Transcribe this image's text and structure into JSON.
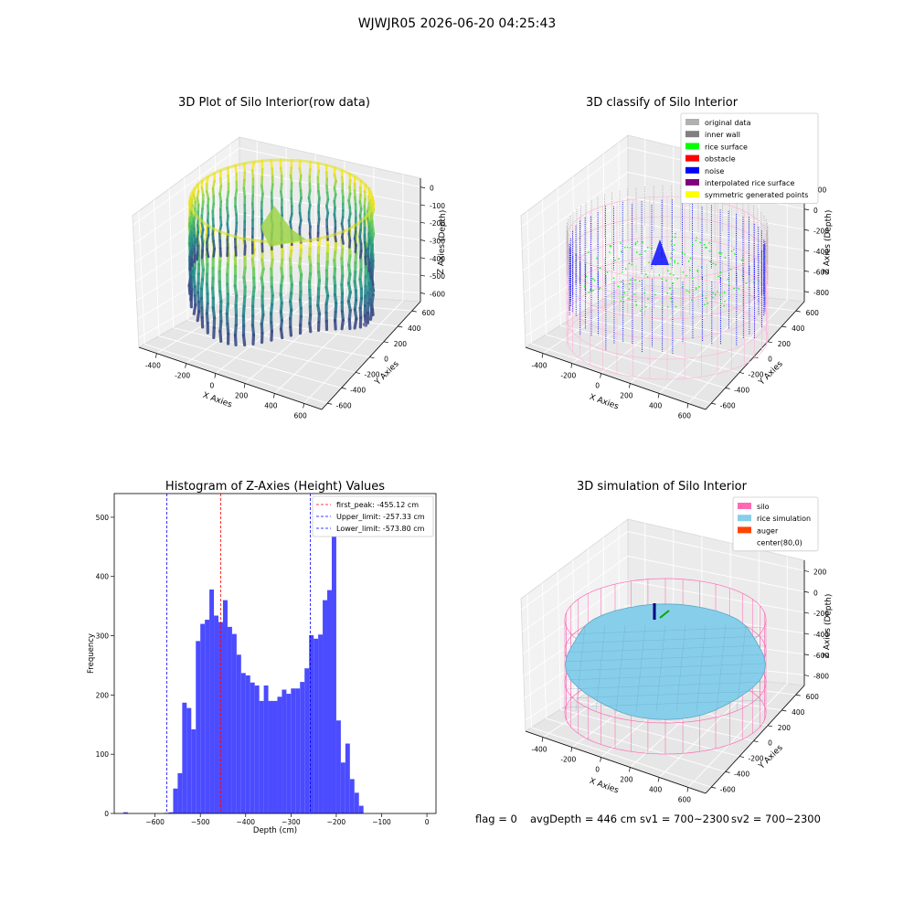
{
  "figure": {
    "suptitle": "WJWJR05 2026-06-20 04:25:43",
    "colors": {
      "navy": "#3b528b",
      "teal": "#21918c",
      "green": "#5ec962",
      "yellow": "#c8e020",
      "blue": "#0000ff",
      "pink": "#ff69b4",
      "sky": "#87ceeb",
      "orange": "#ff4500",
      "gray": "#aaaaaa",
      "darkgray": "#808080",
      "hist": "#4b4bff"
    }
  },
  "footer": {
    "flag": "flag = 0",
    "avg": "avgDepth = 446 cm",
    "sv1": "sv1 = 700~2300",
    "sv2": "sv2 = 700~2300"
  },
  "chart_data": [
    {
      "type": "scatter",
      "subtype": "3d",
      "title": "3D Plot of Silo Interior(row data)",
      "xlabel": "X Axies",
      "ylabel": "Y Axies",
      "zlabel": "Z Axies (Depth)",
      "xticks": [
        "-400",
        "-200",
        "0",
        "200",
        "400",
        "600"
      ],
      "yticks": [
        "-600",
        "-400",
        "-200",
        "0",
        "200",
        "400",
        "600"
      ],
      "zticks": [
        "0",
        "-100",
        "-200",
        "-300",
        "-400",
        "-500",
        "-600"
      ],
      "colormap": "viridis"
    },
    {
      "type": "scatter",
      "subtype": "3d",
      "title": "3D classify of Silo Interior",
      "xlabel": "X Axies",
      "ylabel": "Y Axies",
      "zlabel": "Z Axies (Depth)",
      "xticks": [
        "-400",
        "-200",
        "0",
        "200",
        "400",
        "600"
      ],
      "yticks": [
        "-600",
        "-400",
        "-200",
        "0",
        "200",
        "400",
        "600"
      ],
      "zticks": [
        "200",
        "0",
        "-200",
        "-400",
        "-600",
        "-800"
      ],
      "legend_position": "upper-right",
      "legend": [
        {
          "label": "original data",
          "color": "#b0b0b0"
        },
        {
          "label": "inner wall",
          "color": "#808080"
        },
        {
          "label": "rice surface",
          "color": "#00ff00"
        },
        {
          "label": "obstacle",
          "color": "#ff0000"
        },
        {
          "label": "noise",
          "color": "#0000ff"
        },
        {
          "label": "interpolated rice surface",
          "color": "#800080"
        },
        {
          "label": "symmetric generated points",
          "color": "#ffff00"
        }
      ]
    },
    {
      "type": "bar",
      "subtype": "histogram",
      "title": "Histogram of Z-Axies (Height) Values",
      "xlabel": "Depth (cm)",
      "ylabel": "Frequency",
      "xlim": [
        -690,
        20
      ],
      "ylim": [
        0,
        540
      ],
      "xticks": [
        -600,
        -500,
        -400,
        -300,
        -200,
        -100,
        0
      ],
      "yticks": [
        0,
        100,
        200,
        300,
        400,
        500
      ],
      "bin_width": 10,
      "bins": [
        {
          "x0": -670,
          "count": 2
        },
        {
          "x0": -580,
          "count": 1
        },
        {
          "x0": -570,
          "count": 2
        },
        {
          "x0": -560,
          "count": 42
        },
        {
          "x0": -550,
          "count": 68
        },
        {
          "x0": -540,
          "count": 187
        },
        {
          "x0": -530,
          "count": 178
        },
        {
          "x0": -520,
          "count": 142
        },
        {
          "x0": -510,
          "count": 291
        },
        {
          "x0": -500,
          "count": 320
        },
        {
          "x0": -490,
          "count": 327
        },
        {
          "x0": -480,
          "count": 378
        },
        {
          "x0": -470,
          "count": 334
        },
        {
          "x0": -460,
          "count": 323
        },
        {
          "x0": -450,
          "count": 360
        },
        {
          "x0": -440,
          "count": 315
        },
        {
          "x0": -430,
          "count": 303
        },
        {
          "x0": -420,
          "count": 268
        },
        {
          "x0": -410,
          "count": 237
        },
        {
          "x0": -400,
          "count": 233
        },
        {
          "x0": -390,
          "count": 221
        },
        {
          "x0": -380,
          "count": 216
        },
        {
          "x0": -370,
          "count": 190
        },
        {
          "x0": -360,
          "count": 216
        },
        {
          "x0": -350,
          "count": 190
        },
        {
          "x0": -340,
          "count": 190
        },
        {
          "x0": -330,
          "count": 197
        },
        {
          "x0": -320,
          "count": 209
        },
        {
          "x0": -310,
          "count": 202
        },
        {
          "x0": -300,
          "count": 211
        },
        {
          "x0": -290,
          "count": 211
        },
        {
          "x0": -280,
          "count": 222
        },
        {
          "x0": -270,
          "count": 245
        },
        {
          "x0": -260,
          "count": 301
        },
        {
          "x0": -250,
          "count": 295
        },
        {
          "x0": -240,
          "count": 302
        },
        {
          "x0": -230,
          "count": 360
        },
        {
          "x0": -220,
          "count": 377
        },
        {
          "x0": -210,
          "count": 528
        },
        {
          "x0": -200,
          "count": 157
        },
        {
          "x0": -190,
          "count": 86
        },
        {
          "x0": -180,
          "count": 118
        },
        {
          "x0": -170,
          "count": 58
        },
        {
          "x0": -160,
          "count": 35
        },
        {
          "x0": -150,
          "count": 13
        }
      ],
      "lines": [
        {
          "label": "first_peak: -455.12 cm",
          "x": -455.12,
          "color": "#ff0000"
        },
        {
          "label": "Upper_limit: -257.33 cm",
          "x": -257.33,
          "color": "#0000ff"
        },
        {
          "label": "Lower_limit: -573.80 cm",
          "x": -573.8,
          "color": "#0000ff"
        }
      ]
    },
    {
      "type": "other",
      "subtype": "3d-surface",
      "title": "3D simulation of Silo Interior",
      "xlabel": "X Axies",
      "ylabel": "Y Axies",
      "zlabel": "Z Axies (Depth)",
      "xticks": [
        "-400",
        "-200",
        "0",
        "200",
        "400",
        "600"
      ],
      "yticks": [
        "-600",
        "-400",
        "-200",
        "0",
        "200",
        "400",
        "600"
      ],
      "zticks": [
        "200",
        "0",
        "-200",
        "-400",
        "-600",
        "-800"
      ],
      "legend_position": "upper-right",
      "legend": [
        {
          "label": "silo",
          "color": "#ff69b4"
        },
        {
          "label": "rice simulation",
          "color": "#87ceeb"
        },
        {
          "label": "auger",
          "color": "#ff4500"
        },
        {
          "label": "center(80,0)",
          "color": ""
        }
      ]
    }
  ]
}
